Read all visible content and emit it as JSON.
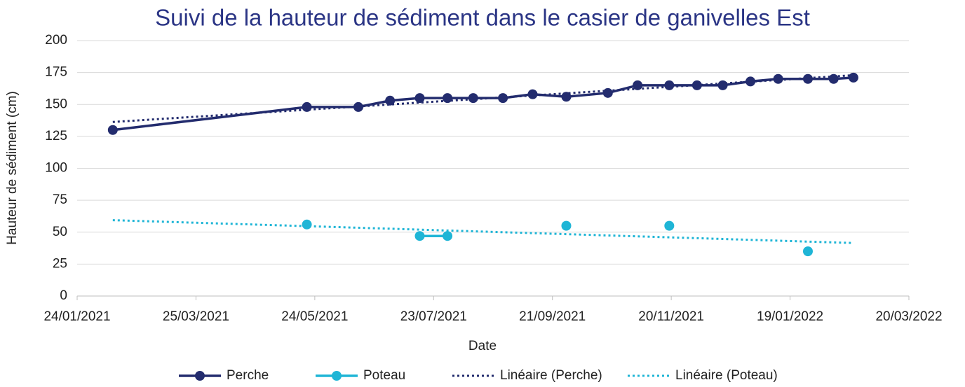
{
  "chart_data": {
    "type": "line",
    "title": "Suivi de la hauteur de sédiment dans le casier de ganivelles Est",
    "x_label": "Date",
    "y_label": "Hauteur de sédiment (cm)",
    "x": [
      "11/02/2021",
      "20/05/2021",
      "15/06/2021",
      "01/07/2021",
      "16/07/2021",
      "30/07/2021",
      "12/08/2021",
      "27/08/2021",
      "11/09/2021",
      "28/09/2021",
      "19/10/2021",
      "03/11/2021",
      "19/11/2021",
      "03/12/2021",
      "16/12/2021",
      "30/12/2021",
      "13/01/2022",
      "28/01/2022",
      "10/02/2022",
      "20/02/2022"
    ],
    "series": [
      {
        "name": "Perche",
        "color": "#232c6e",
        "trendline": "Linéaire (Perche)",
        "values": [
          130,
          148,
          148,
          153,
          155,
          155,
          155,
          155,
          158,
          156,
          159,
          165,
          165,
          165,
          165,
          168,
          170,
          170,
          170,
          171
        ]
      },
      {
        "name": "Poteau",
        "color": "#1fb5d6",
        "trendline": "Linéaire (Poteau)",
        "values": [
          null,
          56,
          null,
          null,
          47,
          47,
          null,
          null,
          null,
          55,
          null,
          null,
          55,
          null,
          null,
          null,
          null,
          35,
          null,
          null
        ]
      }
    ],
    "xlim": [
      "24/01/2021",
      "20/03/2022"
    ],
    "xticks": [
      "24/01/2021",
      "25/03/2021",
      "24/05/2021",
      "23/07/2021",
      "21/09/2021",
      "20/11/2021",
      "19/01/2022",
      "20/03/2022"
    ],
    "ylim": [
      0,
      200
    ],
    "yticks": [
      0,
      25,
      50,
      75,
      100,
      125,
      150,
      175,
      200
    ],
    "grid": true,
    "legend": "bottom"
  }
}
